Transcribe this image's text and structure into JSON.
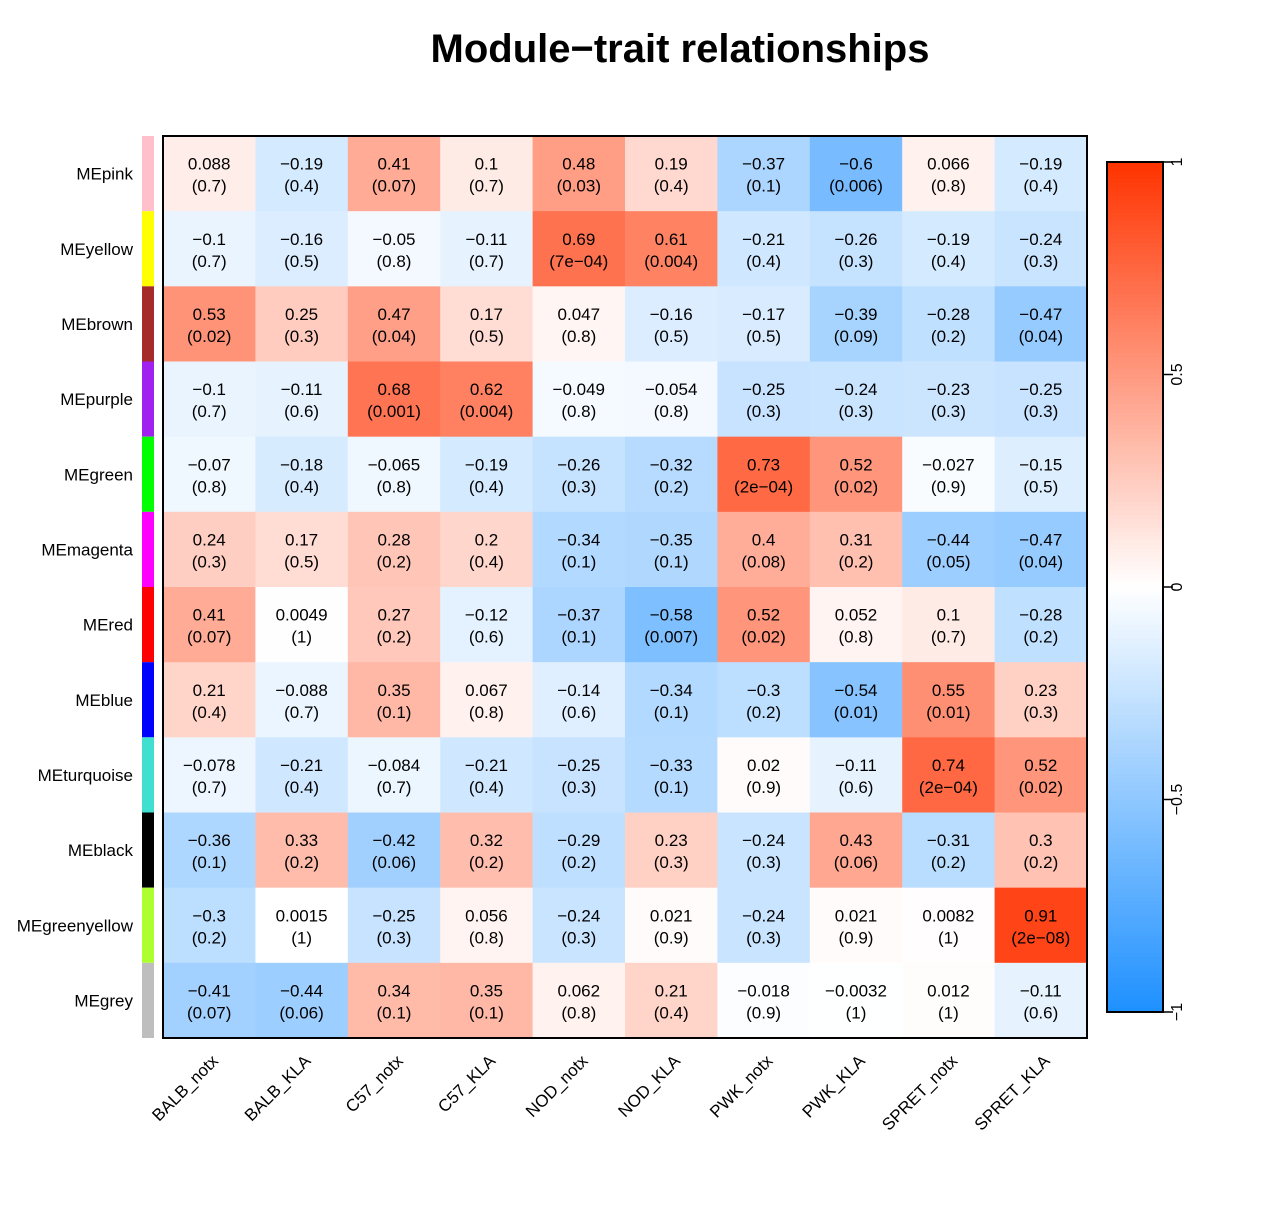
{
  "chart_data": {
    "type": "heatmap",
    "title": "Module−trait relationships",
    "columns": [
      "BALB_notx",
      "BALB_KLA",
      "C57_notx",
      "C57_KLA",
      "NOD_notx",
      "NOD_KLA",
      "PWK_notx",
      "PWK_KLA",
      "SPRET_notx",
      "SPRET_KLA"
    ],
    "rows": [
      {
        "name": "MEpink",
        "color": "#FFC0CB",
        "values": [
          0.088,
          -0.19,
          0.41,
          0.1,
          0.48,
          0.19,
          -0.37,
          -0.6,
          0.066,
          -0.19
        ],
        "value_labels": [
          "0.088",
          "−0.19",
          "0.41",
          "0.1",
          "0.48",
          "0.19",
          "−0.37",
          "−0.6",
          "0.066",
          "−0.19"
        ],
        "pvalue_labels": [
          "(0.7)",
          "(0.4)",
          "(0.07)",
          "(0.7)",
          "(0.03)",
          "(0.4)",
          "(0.1)",
          "(0.006)",
          "(0.8)",
          "(0.4)"
        ]
      },
      {
        "name": "MEyellow",
        "color": "#FFFF00",
        "values": [
          -0.1,
          -0.16,
          -0.05,
          -0.11,
          0.69,
          0.61,
          -0.21,
          -0.26,
          -0.19,
          -0.24
        ],
        "value_labels": [
          "−0.1",
          "−0.16",
          "−0.05",
          "−0.11",
          "0.69",
          "0.61",
          "−0.21",
          "−0.26",
          "−0.19",
          "−0.24"
        ],
        "pvalue_labels": [
          "(0.7)",
          "(0.5)",
          "(0.8)",
          "(0.7)",
          "(7e−04)",
          "(0.004)",
          "(0.4)",
          "(0.3)",
          "(0.4)",
          "(0.3)"
        ]
      },
      {
        "name": "MEbrown",
        "color": "#A52A2A",
        "values": [
          0.53,
          0.25,
          0.47,
          0.17,
          0.047,
          -0.16,
          -0.17,
          -0.39,
          -0.28,
          -0.47
        ],
        "value_labels": [
          "0.53",
          "0.25",
          "0.47",
          "0.17",
          "0.047",
          "−0.16",
          "−0.17",
          "−0.39",
          "−0.28",
          "−0.47"
        ],
        "pvalue_labels": [
          "(0.02)",
          "(0.3)",
          "(0.04)",
          "(0.5)",
          "(0.8)",
          "(0.5)",
          "(0.5)",
          "(0.09)",
          "(0.2)",
          "(0.04)"
        ]
      },
      {
        "name": "MEpurple",
        "color": "#A020F0",
        "values": [
          -0.1,
          -0.11,
          0.68,
          0.62,
          -0.049,
          -0.054,
          -0.25,
          -0.24,
          -0.23,
          -0.25
        ],
        "value_labels": [
          "−0.1",
          "−0.11",
          "0.68",
          "0.62",
          "−0.049",
          "−0.054",
          "−0.25",
          "−0.24",
          "−0.23",
          "−0.25"
        ],
        "pvalue_labels": [
          "(0.7)",
          "(0.6)",
          "(0.001)",
          "(0.004)",
          "(0.8)",
          "(0.8)",
          "(0.3)",
          "(0.3)",
          "(0.3)",
          "(0.3)"
        ]
      },
      {
        "name": "MEgreen",
        "color": "#00FF00",
        "values": [
          -0.07,
          -0.18,
          -0.065,
          -0.19,
          -0.26,
          -0.32,
          0.73,
          0.52,
          -0.027,
          -0.15
        ],
        "value_labels": [
          "−0.07",
          "−0.18",
          "−0.065",
          "−0.19",
          "−0.26",
          "−0.32",
          "0.73",
          "0.52",
          "−0.027",
          "−0.15"
        ],
        "pvalue_labels": [
          "(0.8)",
          "(0.4)",
          "(0.8)",
          "(0.4)",
          "(0.3)",
          "(0.2)",
          "(2e−04)",
          "(0.02)",
          "(0.9)",
          "(0.5)"
        ]
      },
      {
        "name": "MEmagenta",
        "color": "#FF00FF",
        "values": [
          0.24,
          0.17,
          0.28,
          0.2,
          -0.34,
          -0.35,
          0.4,
          0.31,
          -0.44,
          -0.47
        ],
        "value_labels": [
          "0.24",
          "0.17",
          "0.28",
          "0.2",
          "−0.34",
          "−0.35",
          "0.4",
          "0.31",
          "−0.44",
          "−0.47"
        ],
        "pvalue_labels": [
          "(0.3)",
          "(0.5)",
          "(0.2)",
          "(0.4)",
          "(0.1)",
          "(0.1)",
          "(0.08)",
          "(0.2)",
          "(0.05)",
          "(0.04)"
        ]
      },
      {
        "name": "MEred",
        "color": "#FF0000",
        "values": [
          0.41,
          0.0049,
          0.27,
          -0.12,
          -0.37,
          -0.58,
          0.52,
          0.052,
          0.1,
          -0.28
        ],
        "value_labels": [
          "0.41",
          "0.0049",
          "0.27",
          "−0.12",
          "−0.37",
          "−0.58",
          "0.52",
          "0.052",
          "0.1",
          "−0.28"
        ],
        "pvalue_labels": [
          "(0.07)",
          "(1)",
          "(0.2)",
          "(0.6)",
          "(0.1)",
          "(0.007)",
          "(0.02)",
          "(0.8)",
          "(0.7)",
          "(0.2)"
        ]
      },
      {
        "name": "MEblue",
        "color": "#0000FF",
        "values": [
          0.21,
          -0.088,
          0.35,
          0.067,
          -0.14,
          -0.34,
          -0.3,
          -0.54,
          0.55,
          0.23
        ],
        "value_labels": [
          "0.21",
          "−0.088",
          "0.35",
          "0.067",
          "−0.14",
          "−0.34",
          "−0.3",
          "−0.54",
          "0.55",
          "0.23"
        ],
        "pvalue_labels": [
          "(0.4)",
          "(0.7)",
          "(0.1)",
          "(0.8)",
          "(0.6)",
          "(0.1)",
          "(0.2)",
          "(0.01)",
          "(0.01)",
          "(0.3)"
        ]
      },
      {
        "name": "MEturquoise",
        "color": "#40E0D0",
        "values": [
          -0.078,
          -0.21,
          -0.084,
          -0.21,
          -0.25,
          -0.33,
          0.02,
          -0.11,
          0.74,
          0.52
        ],
        "value_labels": [
          "−0.078",
          "−0.21",
          "−0.084",
          "−0.21",
          "−0.25",
          "−0.33",
          "0.02",
          "−0.11",
          "0.74",
          "0.52"
        ],
        "pvalue_labels": [
          "(0.7)",
          "(0.4)",
          "(0.7)",
          "(0.4)",
          "(0.3)",
          "(0.1)",
          "(0.9)",
          "(0.6)",
          "(2e−04)",
          "(0.02)"
        ]
      },
      {
        "name": "MEblack",
        "color": "#000000",
        "values": [
          -0.36,
          0.33,
          -0.42,
          0.32,
          -0.29,
          0.23,
          -0.24,
          0.43,
          -0.31,
          0.3
        ],
        "value_labels": [
          "−0.36",
          "0.33",
          "−0.42",
          "0.32",
          "−0.29",
          "0.23",
          "−0.24",
          "0.43",
          "−0.31",
          "0.3"
        ],
        "pvalue_labels": [
          "(0.1)",
          "(0.2)",
          "(0.06)",
          "(0.2)",
          "(0.2)",
          "(0.3)",
          "(0.3)",
          "(0.06)",
          "(0.2)",
          "(0.2)"
        ]
      },
      {
        "name": "MEgreenyellow",
        "color": "#ADFF2F",
        "values": [
          -0.3,
          0.0015,
          -0.25,
          0.056,
          -0.24,
          0.021,
          -0.24,
          0.021,
          0.0082,
          0.91
        ],
        "value_labels": [
          "−0.3",
          "0.0015",
          "−0.25",
          "0.056",
          "−0.24",
          "0.021",
          "−0.24",
          "0.021",
          "0.0082",
          "0.91"
        ],
        "pvalue_labels": [
          "(0.2)",
          "(1)",
          "(0.3)",
          "(0.8)",
          "(0.3)",
          "(0.9)",
          "(0.3)",
          "(0.9)",
          "(1)",
          "(2e−08)"
        ]
      },
      {
        "name": "MEgrey",
        "color": "#BEBEBE",
        "values": [
          -0.41,
          -0.44,
          0.34,
          0.35,
          0.062,
          0.21,
          -0.018,
          -0.0032,
          0.012,
          -0.11
        ],
        "value_labels": [
          "−0.41",
          "−0.44",
          "0.34",
          "0.35",
          "0.062",
          "0.21",
          "−0.018",
          "−0.0032",
          "0.012",
          "−0.11"
        ],
        "pvalue_labels": [
          "(0.07)",
          "(0.06)",
          "(0.1)",
          "(0.1)",
          "(0.8)",
          "(0.4)",
          "(0.9)",
          "(1)",
          "(1)",
          "(0.6)"
        ]
      }
    ],
    "color_scale": {
      "min": -1,
      "max": 1,
      "low_color": "#1E90FF",
      "mid_color": "#FFFFFF",
      "high_color": "#FF3300",
      "ticks": [
        1,
        0.5,
        0,
        -0.5,
        -1
      ],
      "tick_labels": [
        "1",
        "0.5",
        "0",
        "−0.5",
        "−1"
      ]
    },
    "grid": false,
    "legend_placement": "right"
  }
}
